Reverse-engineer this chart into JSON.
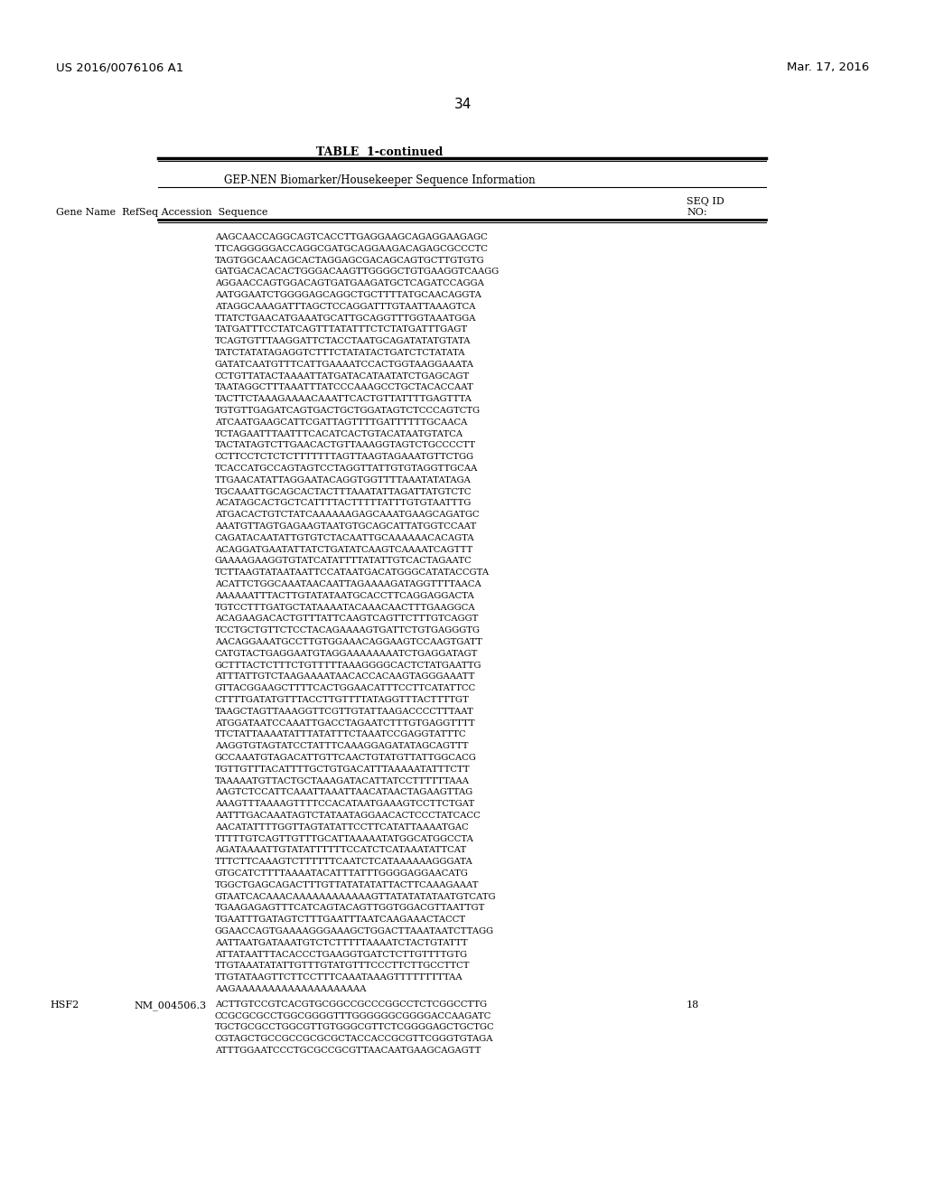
{
  "header_left": "US 2016/0076106 A1",
  "header_right": "Mar. 17, 2016",
  "page_number": "34",
  "table_title": "TABLE  1-continued",
  "table_subtitle": "GEP-NEN Biomarker/Housekeeper Sequence Information",
  "sequence_lines": [
    "AAGCAACCAGGCAGTCACCTTGAGGAAGCAGAGGAAGAGC",
    "TTCAGGGGGACCAGGCGATGCAGGAAGACAGAGCGCCCTC",
    "TAGTGGCAACAGCACTAGGAGCGACAGCAGTGCTTGTGTG",
    "GATGACACACACTGGGACAAGTTGGGGCTGTGAAGGTCAAGG",
    "AGGAACCAGTGGACAGTGATGAAGATGCTCAGATCCAGGA",
    "AATGGAATCTGGGGAGCAGGCTGCTTTTATGCAACAGGTA",
    "ATAGGCAAAGATTTAGCTCCAGGATTTGTAATTAAAGTCA",
    "TTATCTGAACATGAAATGCATTGCAGGTTTGGTAAATGGA",
    "TATGATTTCCTATCAGTTTATATTTCTCTATGATTTGAGT",
    "TCAGTGTTTAAGGATTCTACCTAATGCAGATATATGTATA",
    "TATCTATATAGAGGTCTTTCTATATACTGATCTCTATATA",
    "GATATCAATGTTTCATTGAAAATCCACTGGTAAGGAAATA",
    "CCTGTTATACTAAAATTATGATACATAATATCTGAGCAGT",
    "TAATAGGCTTTAAATTTATCCCAAAGCCTGCTACACCAAT",
    "TACTTCTAAAGAAAACAAATTCACTGTTATTTTGAGTTTA",
    "TGTGTTGAGATCAGTGACTGCTGGATAGTCTCCCAGTCTG",
    "ATCAATGAAGCATTCGATTAGTTTTGATTTTTTGCAACA",
    "TCTAGAATTTAATTTCACATCACTGTACATAATGTATCA",
    "TACTATAGTCTTGAACACTGTTAAAGGTAGTCTGCCCCTT",
    "CCTTCCTCTCTCTTTTTTTAGTTAAGTAGAAATGTTCTGG",
    "TCACCATGCCAGTAGTCCTAGGTTATTGTGTAGGTTGCAA",
    "TTGAACATATTAGGAATACAGGTGGTTTTAAATATATAGA",
    "TGCAAATTGCAGCACTACTTTAAATATTAGATTATGTCTC",
    "ACATAGCACTGCTCATTTTACTTTTTATTTGTGTAATTTG",
    "ATGACACTGTCTATCAAAAAAGAGCAAATGAAGCAGATGC",
    "AAATGTTAGTGAGAAGTAATGTGCAGCATTATGGTCCAAT",
    "CAGATACAATATTGTGTCTACAATTGCAAAAAACACAGTA",
    "ACAGGATGAATATTATCTGATATCAAGTCAAAATCAGTTT",
    "GAAAAGAAGGTGTATCATATTTTATATTGTCACTAGAATC",
    "TCTTAAGTATAATAATTCCATAATGACATGGGCATATACCGTA",
    "ACATTCTGGCAAATAACAATTAGAAAAGATAGGTTTTAACA",
    "AAAAAATTTACTTGTATATAATGCACCTTCAGGAGGACTA",
    "TGTCCTTTGATGCTATAAAATACAAACAACTTTGAAGGCA",
    "ACAGAAGACACTGTTTATTCAAGTCAGTTCTTTGTCAGGT",
    "TCCTGCTGTTCTCCTACAGAAAAGTGATTCTGTGAGGGTG",
    "AACAGGAAATGCCTTGTGGAAACAGGAAGTCCAAGTGATT",
    "CATGTACTGAGGAATGTAGGAAAAAAAATCTGAGGATAGT",
    "GCTTTACTCTTTCTGTTTTTAAAGGGGCACTCTATGAATTG",
    "ATTTATTGTCTAAGAAAATAACACCACAAGTAGGGAAATT",
    "GTTACGGAAGCTTTTCACTGGAACATTTCCTTCATATTCC",
    "CTTTTGATATGTTTACCTTGTTTTATAGGTTTACTTTTGT",
    "TAAGCTAGTTAAAGGTTCGTTGTATTAAGACCCCTTTAAT",
    "ATGGATAATCCAAATTGACCTAGAATCTTTGTGAGGTTTT",
    "TTCTATTAAAATATTTATATTTCTAAATCCGAGGTATTTC",
    "AAGGTGTAGTATCCTATTTCAAAGGAGATATAGCAGTTT",
    "GCCAAATGTAGACATTGTTCAACTGTATGTTATTGGCACG",
    "TGTTGTTTACATTTTGCTGTGACATTTAAAAATATTTCTT",
    "TAAAAATGTTACTGCTAAAGATACATTATCCTTTTTTAAA",
    "AAGTCTCCATTCAAATTAAATTAACATAACTAGAAGTTAG",
    "AAAGTTTAAAAGTTTTCCACATAATGAAAGTCCTTCTGAT",
    "AATTTGACAAATAGTCTATAATAGGAACACTCCCTATCACC",
    "AACATATTTTGGTTAGTATATTCCTTCATATTAAAATGAC",
    "TTTTTGTCAGTTGTTTGCATTAAAAATATGGCATGGCCTA",
    "AGATAAAATTGTATATTTTTTCCATCTCATAAATATTCAT",
    "TTTCTTCAAAGTCTTTTTTCAATCTCATAAAAAAGGGATA",
    "GTGCATCTTTTAAAATACATTTATTTGGGGAGGAACATG",
    "TGGCTGAGCAGACTTTGTTATATATATTACTTCAAAGAAAT",
    "GTAATCACAAACAAAAAAAAAAAAGTTATATATATAATGTCATG",
    "TGAAGAGAGTTTCATCAGTACAGTTGGTGGACGTTAATTGT",
    "TGAATTTGATAGTCTTTGAATTTAATCAAGAAACTACCT",
    "GGAACCAGTGAAAAGGGAAAGCTGGACTTAAATAATCTTAGG",
    "AATTAATGATAAATGTCTCTTTTTAAAATCTACTGTATTT",
    "ATTATAATTTACACCCTGAAGGTGATCTCTTGTTTTGTG",
    "TTGTAAATATATTGTTTGTATGTTTCCCTTCTTGCCTTCT",
    "TTGTATAAGTTCTTCCTTTCAAATAAAGTTTTTTTTTAA",
    "AAGAAAAAAAAAAAAAAAAAAAA"
  ],
  "hsf2_gene": "HSF2",
  "hsf2_accession": "NM_004506.3",
  "hsf2_seq_id": "18",
  "hsf2_lines": [
    "ACTTGTCCGTCACGTGCGGCCGCCCGGCCTCTCGGCCTTG",
    "CCGCGCGCCTGGCGGGGTTTGGGGGGCGGGGACCAAGATC",
    "TGCTGCGCCTGGCGTTGTGGGCGTTCTCGGGGAGCTGCTGC",
    "CGTAGCTGCCGCCGCGCGCTACCACCGCGTTCGGGTGTAGA",
    "ATTTGGAATCCCTGCGCCGCGTTAACAATGAAGCAGAGTT"
  ],
  "background_color": "#ffffff",
  "text_color": "#000000"
}
